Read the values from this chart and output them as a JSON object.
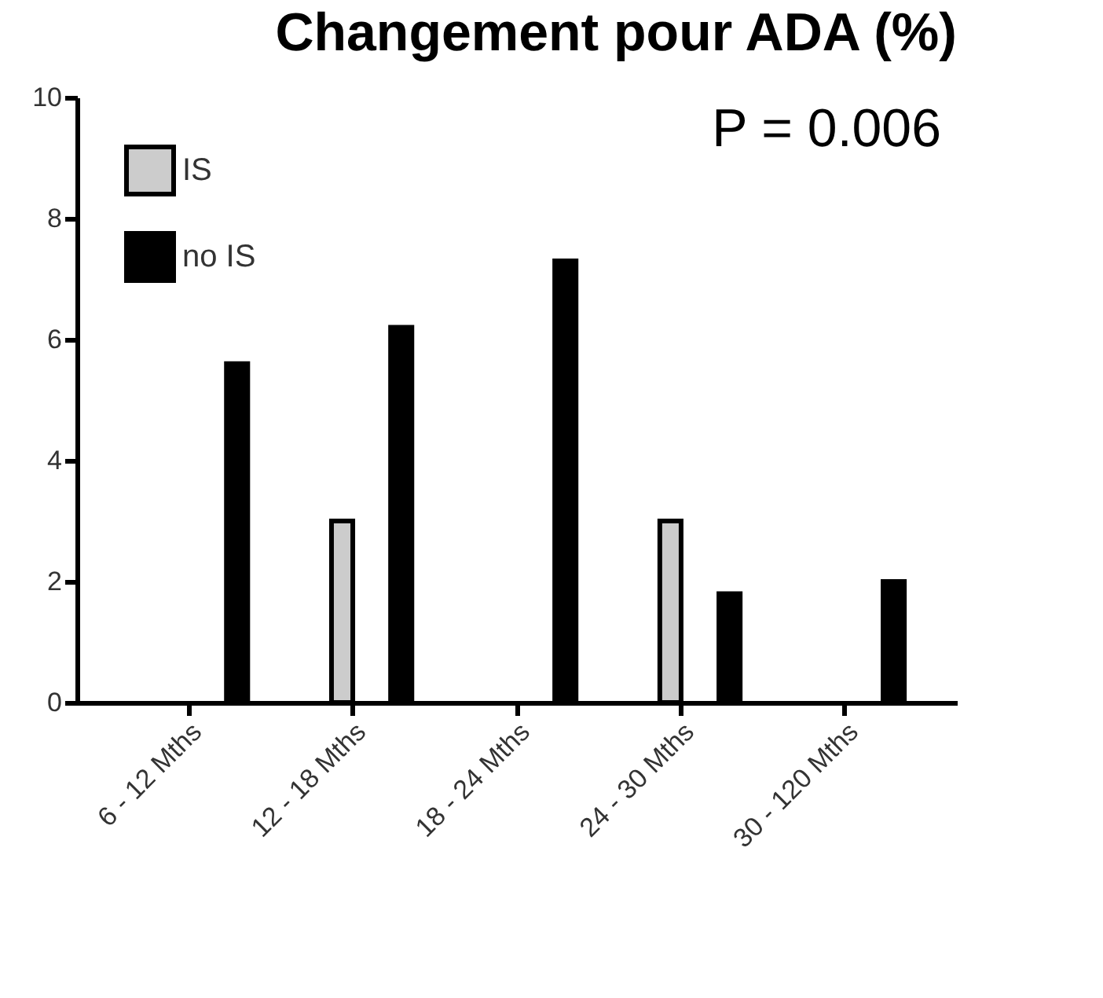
{
  "chart_data": {
    "type": "bar",
    "title": "Changement pour ADA (%)",
    "annotations": [
      "P = 0.006"
    ],
    "categories": [
      "6 - 12 Mths",
      "12 - 18 Mths",
      "18 - 24 Mths",
      "24 - 30 Mths",
      "30 - 120 Mths"
    ],
    "series": [
      {
        "name": "IS",
        "color": "#cccccc",
        "values": [
          null,
          3.0,
          null,
          3.0,
          null
        ]
      },
      {
        "name": "no IS",
        "color": "#000000",
        "values": [
          5.6,
          6.2,
          7.3,
          1.8,
          2.0
        ]
      }
    ],
    "ylim": [
      0,
      10
    ],
    "yticks": [
      0,
      2,
      4,
      6,
      8,
      10
    ],
    "grid": false,
    "legend": "top left"
  }
}
